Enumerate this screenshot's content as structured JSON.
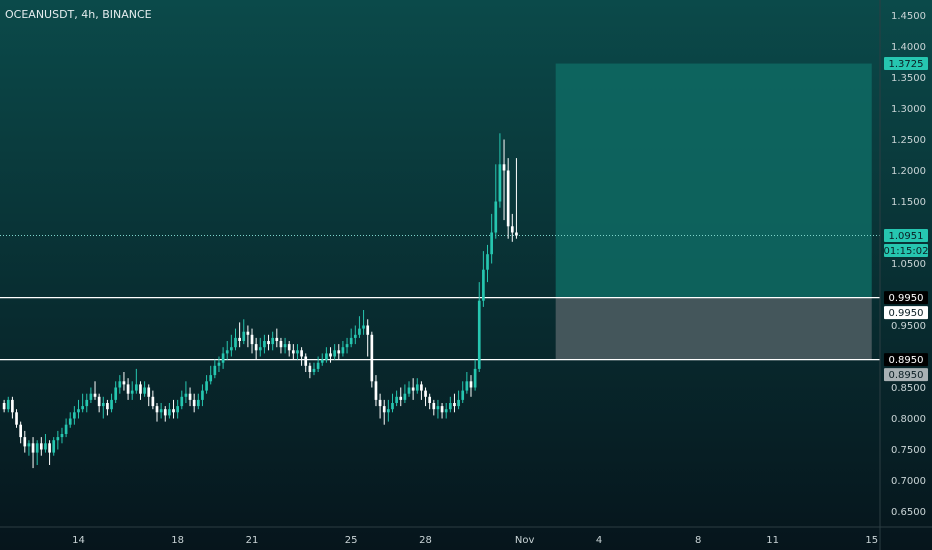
{
  "header": {
    "title": "OCEANUSDT, 4h, BINANCE"
  },
  "colors": {
    "bg_top": "#0b4a4a",
    "bg_bottom": "#06151c",
    "up": "#26c6b0",
    "down": "#ffffff",
    "target_zone": "#0e6a63",
    "stop_zone": "#4b5b61",
    "level_line": "#ffffff",
    "price_dotted": "#7fd6cc",
    "label_teal": "#26c6b0",
    "label_white": "#ffffff",
    "label_grey": "#a9b1b4"
  },
  "chart_data": {
    "type": "candlestick",
    "title": "OCEANUSDT, 4h, BINANCE",
    "ylim": [
      0.625,
      1.475
    ],
    "y_ticks": [
      "1.4500",
      "1.4000",
      "1.3500",
      "1.3000",
      "1.2500",
      "1.2000",
      "1.1500",
      "1.0500",
      "0.9500",
      "0.8500",
      "0.8000",
      "0.7500",
      "0.7000",
      "0.6500"
    ],
    "x_ticks": [
      {
        "label": "14",
        "index": 18
      },
      {
        "label": "18",
        "index": 42
      },
      {
        "label": "21",
        "index": 60
      },
      {
        "label": "25",
        "index": 84
      },
      {
        "label": "28",
        "index": 102
      },
      {
        "label": "Nov",
        "index": 126
      },
      {
        "label": "4",
        "index": 144
      },
      {
        "label": "8",
        "index": 168
      },
      {
        "label": "11",
        "index": 186
      },
      {
        "label": "15",
        "index": 210
      }
    ],
    "xlim": [
      -1,
      212
    ],
    "levels": [
      0.995,
      0.895
    ],
    "current_price": 1.0951,
    "markers": [
      {
        "text": "1.3725",
        "kind": "teal",
        "value": 1.3725
      },
      {
        "text": "1.0951",
        "kind": "teal",
        "value": 1.0951
      },
      {
        "text": "01:15:02",
        "kind": "teal",
        "value": 1.0951
      },
      {
        "text": "0.9950",
        "kind": "black",
        "value": 0.995
      },
      {
        "text": "0.9950",
        "kind": "white",
        "value": 0.995
      },
      {
        "text": "0.8950",
        "kind": "black",
        "value": 0.895
      },
      {
        "text": "0.8950",
        "kind": "grey",
        "value": 0.895
      }
    ],
    "position": {
      "x_start": 134,
      "x_end": 210,
      "entry": 0.995,
      "target": 1.3725,
      "stop": 0.895
    },
    "candles": [
      [
        0.825,
        0.815,
        0.83,
        0.81
      ],
      [
        0.815,
        0.83,
        0.835,
        0.81
      ],
      [
        0.83,
        0.81,
        0.835,
        0.8
      ],
      [
        0.81,
        0.79,
        0.815,
        0.785
      ],
      [
        0.79,
        0.77,
        0.795,
        0.76
      ],
      [
        0.77,
        0.755,
        0.78,
        0.745
      ],
      [
        0.755,
        0.76,
        0.765,
        0.74
      ],
      [
        0.76,
        0.745,
        0.77,
        0.72
      ],
      [
        0.745,
        0.76,
        0.765,
        0.725
      ],
      [
        0.76,
        0.75,
        0.77,
        0.74
      ],
      [
        0.75,
        0.76,
        0.775,
        0.745
      ],
      [
        0.76,
        0.745,
        0.765,
        0.725
      ],
      [
        0.745,
        0.765,
        0.77,
        0.74
      ],
      [
        0.765,
        0.77,
        0.78,
        0.75
      ],
      [
        0.77,
        0.775,
        0.785,
        0.76
      ],
      [
        0.775,
        0.79,
        0.8,
        0.77
      ],
      [
        0.79,
        0.8,
        0.81,
        0.785
      ],
      [
        0.8,
        0.81,
        0.82,
        0.79
      ],
      [
        0.81,
        0.815,
        0.83,
        0.8
      ],
      [
        0.815,
        0.82,
        0.84,
        0.81
      ],
      [
        0.82,
        0.83,
        0.84,
        0.81
      ],
      [
        0.83,
        0.84,
        0.85,
        0.825
      ],
      [
        0.84,
        0.835,
        0.86,
        0.83
      ],
      [
        0.835,
        0.82,
        0.84,
        0.81
      ],
      [
        0.82,
        0.825,
        0.835,
        0.8
      ],
      [
        0.825,
        0.815,
        0.83,
        0.805
      ],
      [
        0.815,
        0.83,
        0.84,
        0.81
      ],
      [
        0.83,
        0.85,
        0.86,
        0.825
      ],
      [
        0.85,
        0.86,
        0.87,
        0.84
      ],
      [
        0.86,
        0.855,
        0.875,
        0.845
      ],
      [
        0.855,
        0.84,
        0.865,
        0.83
      ],
      [
        0.84,
        0.845,
        0.86,
        0.83
      ],
      [
        0.845,
        0.855,
        0.88,
        0.84
      ],
      [
        0.855,
        0.84,
        0.86,
        0.83
      ],
      [
        0.84,
        0.85,
        0.86,
        0.835
      ],
      [
        0.85,
        0.835,
        0.855,
        0.82
      ],
      [
        0.835,
        0.82,
        0.845,
        0.815
      ],
      [
        0.82,
        0.81,
        0.825,
        0.795
      ],
      [
        0.81,
        0.815,
        0.825,
        0.8
      ],
      [
        0.815,
        0.805,
        0.82,
        0.795
      ],
      [
        0.805,
        0.815,
        0.825,
        0.8
      ],
      [
        0.815,
        0.81,
        0.83,
        0.8
      ],
      [
        0.81,
        0.82,
        0.83,
        0.8
      ],
      [
        0.82,
        0.835,
        0.845,
        0.815
      ],
      [
        0.835,
        0.84,
        0.86,
        0.825
      ],
      [
        0.84,
        0.83,
        0.85,
        0.82
      ],
      [
        0.83,
        0.82,
        0.84,
        0.81
      ],
      [
        0.82,
        0.83,
        0.84,
        0.815
      ],
      [
        0.83,
        0.845,
        0.855,
        0.82
      ],
      [
        0.845,
        0.86,
        0.87,
        0.84
      ],
      [
        0.86,
        0.87,
        0.885,
        0.855
      ],
      [
        0.87,
        0.885,
        0.895,
        0.865
      ],
      [
        0.885,
        0.89,
        0.9,
        0.875
      ],
      [
        0.89,
        0.905,
        0.915,
        0.88
      ],
      [
        0.905,
        0.91,
        0.925,
        0.895
      ],
      [
        0.91,
        0.915,
        0.935,
        0.9
      ],
      [
        0.915,
        0.93,
        0.945,
        0.91
      ],
      [
        0.93,
        0.925,
        0.955,
        0.915
      ],
      [
        0.925,
        0.94,
        0.96,
        0.92
      ],
      [
        0.94,
        0.935,
        0.95,
        0.915
      ],
      [
        0.935,
        0.92,
        0.945,
        0.905
      ],
      [
        0.92,
        0.91,
        0.93,
        0.895
      ],
      [
        0.91,
        0.915,
        0.93,
        0.9
      ],
      [
        0.915,
        0.925,
        0.935,
        0.905
      ],
      [
        0.925,
        0.92,
        0.935,
        0.91
      ],
      [
        0.92,
        0.93,
        0.94,
        0.91
      ],
      [
        0.93,
        0.925,
        0.945,
        0.915
      ],
      [
        0.925,
        0.915,
        0.93,
        0.905
      ],
      [
        0.915,
        0.92,
        0.93,
        0.905
      ],
      [
        0.92,
        0.91,
        0.925,
        0.9
      ],
      [
        0.91,
        0.905,
        0.92,
        0.895
      ],
      [
        0.905,
        0.91,
        0.92,
        0.895
      ],
      [
        0.91,
        0.9,
        0.915,
        0.885
      ],
      [
        0.9,
        0.885,
        0.905,
        0.875
      ],
      [
        0.885,
        0.875,
        0.89,
        0.865
      ],
      [
        0.875,
        0.88,
        0.89,
        0.87
      ],
      [
        0.88,
        0.89,
        0.9,
        0.875
      ],
      [
        0.89,
        0.895,
        0.905,
        0.885
      ],
      [
        0.895,
        0.905,
        0.915,
        0.89
      ],
      [
        0.905,
        0.9,
        0.915,
        0.89
      ],
      [
        0.9,
        0.91,
        0.92,
        0.895
      ],
      [
        0.91,
        0.905,
        0.92,
        0.895
      ],
      [
        0.905,
        0.915,
        0.925,
        0.9
      ],
      [
        0.915,
        0.92,
        0.93,
        0.905
      ],
      [
        0.92,
        0.93,
        0.945,
        0.915
      ],
      [
        0.93,
        0.935,
        0.95,
        0.92
      ],
      [
        0.935,
        0.945,
        0.965,
        0.93
      ],
      [
        0.945,
        0.95,
        0.975,
        0.935
      ],
      [
        0.95,
        0.935,
        0.96,
        0.9
      ],
      [
        0.935,
        0.86,
        0.94,
        0.85
      ],
      [
        0.86,
        0.83,
        0.87,
        0.82
      ],
      [
        0.83,
        0.82,
        0.84,
        0.8
      ],
      [
        0.82,
        0.81,
        0.83,
        0.79
      ],
      [
        0.81,
        0.815,
        0.83,
        0.795
      ],
      [
        0.815,
        0.825,
        0.84,
        0.81
      ],
      [
        0.825,
        0.835,
        0.845,
        0.82
      ],
      [
        0.835,
        0.83,
        0.85,
        0.82
      ],
      [
        0.83,
        0.84,
        0.855,
        0.825
      ],
      [
        0.84,
        0.85,
        0.86,
        0.835
      ],
      [
        0.85,
        0.845,
        0.865,
        0.83
      ],
      [
        0.845,
        0.855,
        0.865,
        0.84
      ],
      [
        0.855,
        0.845,
        0.86,
        0.83
      ],
      [
        0.845,
        0.835,
        0.85,
        0.82
      ],
      [
        0.835,
        0.825,
        0.84,
        0.815
      ],
      [
        0.825,
        0.815,
        0.83,
        0.805
      ],
      [
        0.815,
        0.82,
        0.83,
        0.8
      ],
      [
        0.82,
        0.81,
        0.825,
        0.8
      ],
      [
        0.81,
        0.815,
        0.825,
        0.8
      ],
      [
        0.815,
        0.825,
        0.835,
        0.81
      ],
      [
        0.825,
        0.82,
        0.84,
        0.81
      ],
      [
        0.82,
        0.83,
        0.845,
        0.815
      ],
      [
        0.83,
        0.845,
        0.86,
        0.825
      ],
      [
        0.845,
        0.86,
        0.875,
        0.84
      ],
      [
        0.86,
        0.85,
        0.87,
        0.835
      ],
      [
        0.85,
        0.88,
        0.895,
        0.845
      ],
      [
        0.88,
        0.99,
        1.02,
        0.875
      ],
      [
        0.99,
        1.04,
        1.07,
        0.98
      ],
      [
        1.04,
        1.065,
        1.08,
        1.02
      ],
      [
        1.065,
        1.1,
        1.13,
        1.05
      ],
      [
        1.1,
        1.15,
        1.21,
        1.09
      ],
      [
        1.15,
        1.21,
        1.26,
        1.14
      ],
      [
        1.21,
        1.2,
        1.25,
        1.12
      ],
      [
        1.2,
        1.11,
        1.22,
        1.09
      ],
      [
        1.11,
        1.1,
        1.13,
        1.085
      ],
      [
        1.1,
        1.0951,
        1.22,
        1.09
      ]
    ]
  }
}
